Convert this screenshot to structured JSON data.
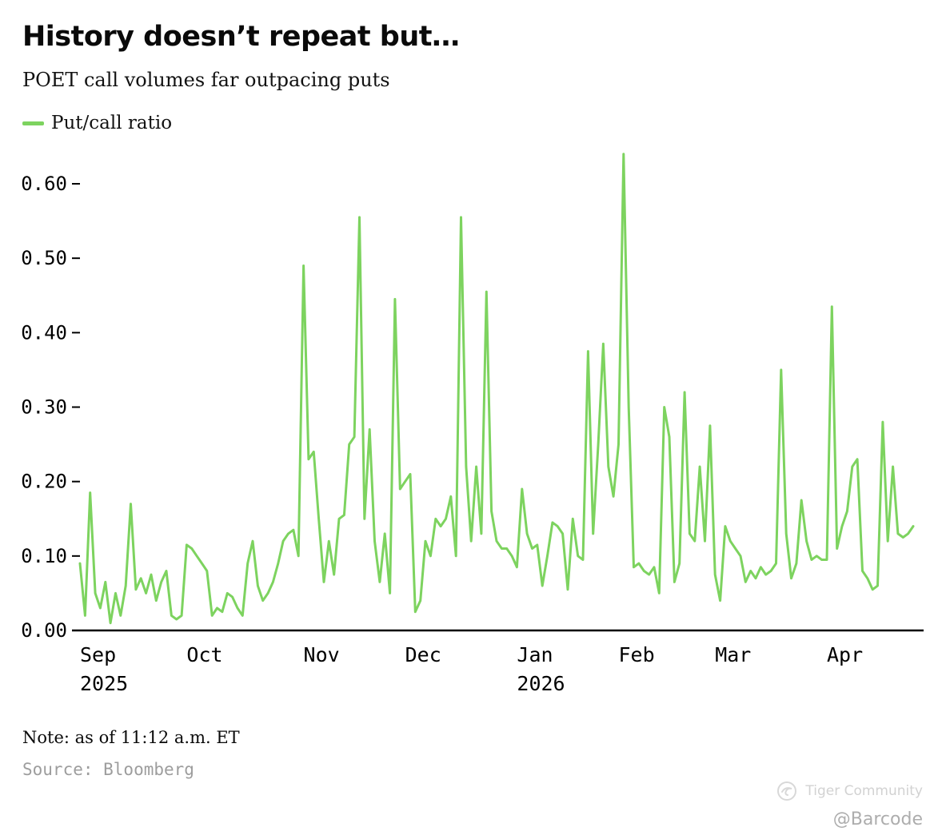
{
  "header": {
    "title": "History doesn’t repeat but…",
    "subtitle": "POET call volumes far outpacing puts"
  },
  "legend": {
    "label": "Put/call ratio",
    "color": "#7dd35f"
  },
  "chart_data": {
    "type": "line",
    "title": "History doesn’t repeat but…",
    "subtitle": "POET call volumes far outpacing puts",
    "xlabel": "",
    "ylabel": "Put/call ratio",
    "grid": false,
    "legend_position": "top-left",
    "line_color": "#7dd35f",
    "axis_color": "#000000",
    "ylim": [
      0.0,
      0.66
    ],
    "y_ticks": [
      0.0,
      0.1,
      0.2,
      0.3,
      0.4,
      0.5,
      0.6
    ],
    "x_ticks": [
      {
        "label": "Sep",
        "sublabel": "2025",
        "index": 0
      },
      {
        "label": "Oct",
        "index": 21
      },
      {
        "label": "Nov",
        "index": 44
      },
      {
        "label": "Dec",
        "index": 64
      },
      {
        "label": "Jan",
        "sublabel": "2026",
        "index": 86
      },
      {
        "label": "Feb",
        "index": 106
      },
      {
        "label": "Mar",
        "index": 125
      },
      {
        "label": "Apr",
        "index": 147
      }
    ],
    "series": [
      {
        "name": "Put/call ratio",
        "color": "#7dd35f",
        "values": [
          0.09,
          0.02,
          0.185,
          0.05,
          0.03,
          0.065,
          0.01,
          0.05,
          0.02,
          0.06,
          0.17,
          0.055,
          0.07,
          0.05,
          0.075,
          0.04,
          0.065,
          0.08,
          0.02,
          0.015,
          0.02,
          0.115,
          0.11,
          0.1,
          0.09,
          0.08,
          0.02,
          0.03,
          0.025,
          0.05,
          0.045,
          0.03,
          0.02,
          0.09,
          0.12,
          0.06,
          0.04,
          0.05,
          0.065,
          0.09,
          0.12,
          0.13,
          0.135,
          0.1,
          0.49,
          0.23,
          0.24,
          0.15,
          0.065,
          0.12,
          0.075,
          0.15,
          0.155,
          0.25,
          0.26,
          0.555,
          0.15,
          0.27,
          0.12,
          0.065,
          0.13,
          0.05,
          0.445,
          0.19,
          0.2,
          0.21,
          0.025,
          0.04,
          0.12,
          0.1,
          0.15,
          0.14,
          0.15,
          0.18,
          0.1,
          0.555,
          0.22,
          0.12,
          0.22,
          0.13,
          0.455,
          0.16,
          0.12,
          0.11,
          0.11,
          0.1,
          0.085,
          0.19,
          0.13,
          0.11,
          0.115,
          0.06,
          0.1,
          0.145,
          0.14,
          0.13,
          0.055,
          0.15,
          0.1,
          0.095,
          0.375,
          0.13,
          0.25,
          0.385,
          0.22,
          0.18,
          0.25,
          0.64,
          0.3,
          0.085,
          0.09,
          0.08,
          0.075,
          0.085,
          0.05,
          0.3,
          0.26,
          0.065,
          0.09,
          0.32,
          0.13,
          0.12,
          0.22,
          0.12,
          0.275,
          0.075,
          0.04,
          0.14,
          0.12,
          0.11,
          0.1,
          0.065,
          0.08,
          0.07,
          0.085,
          0.075,
          0.08,
          0.09,
          0.35,
          0.13,
          0.07,
          0.09,
          0.175,
          0.12,
          0.095,
          0.1,
          0.095,
          0.095,
          0.435,
          0.11,
          0.14,
          0.16,
          0.22,
          0.23,
          0.08,
          0.07,
          0.055,
          0.06,
          0.28,
          0.12,
          0.22,
          0.13,
          0.125,
          0.13,
          0.14
        ]
      }
    ]
  },
  "footer": {
    "note": "Note: as of 11:12 a.m. ET",
    "source": "Source: Bloomberg"
  },
  "watermark": {
    "brand": "Tiger Community",
    "handle": "@Barcode"
  }
}
